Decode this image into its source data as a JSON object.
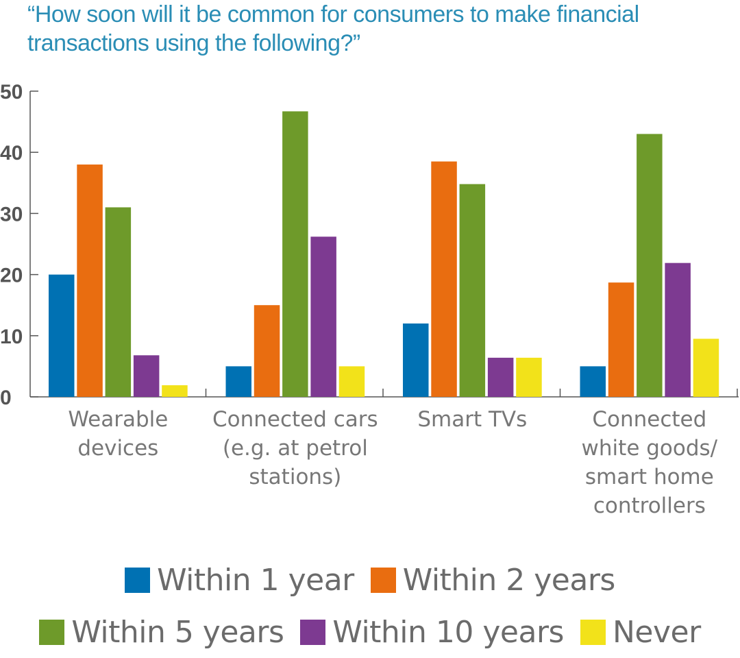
{
  "chart_data": {
    "type": "bar",
    "title": "“How soon will it be common for consumers to make financial transactions using the following?”",
    "categories": [
      [
        "Wearable",
        "devices"
      ],
      [
        "Connected cars",
        "(e.g. at petrol",
        "stations)"
      ],
      [
        "Smart TVs"
      ],
      [
        "Connected",
        "white goods/",
        "smart home",
        "controllers"
      ]
    ],
    "series": [
      {
        "name": "Within 1 year",
        "color": "#0071b3",
        "values": [
          20,
          5,
          12,
          5
        ]
      },
      {
        "name": "Within 2 years",
        "color": "#e96d10",
        "values": [
          38,
          15,
          38.5,
          18.7
        ]
      },
      {
        "name": "Within 5 years",
        "color": "#6e9a2a",
        "values": [
          31,
          46.7,
          34.8,
          43
        ]
      },
      {
        "name": "Within 10 years",
        "color": "#7d3a91",
        "values": [
          6.8,
          26.2,
          6.4,
          21.9
        ]
      },
      {
        "name": "Never",
        "color": "#f2e21a",
        "values": [
          1.9,
          5,
          6.4,
          9.5
        ]
      }
    ],
    "ylim": [
      0,
      50
    ],
    "yticks": [
      0,
      10,
      20,
      30,
      40,
      50
    ],
    "grid": false,
    "legend_position": "bottom",
    "xlabel": "",
    "ylabel": ""
  },
  "legend_rows": [
    [
      0,
      1
    ],
    [
      2,
      3,
      4
    ]
  ]
}
